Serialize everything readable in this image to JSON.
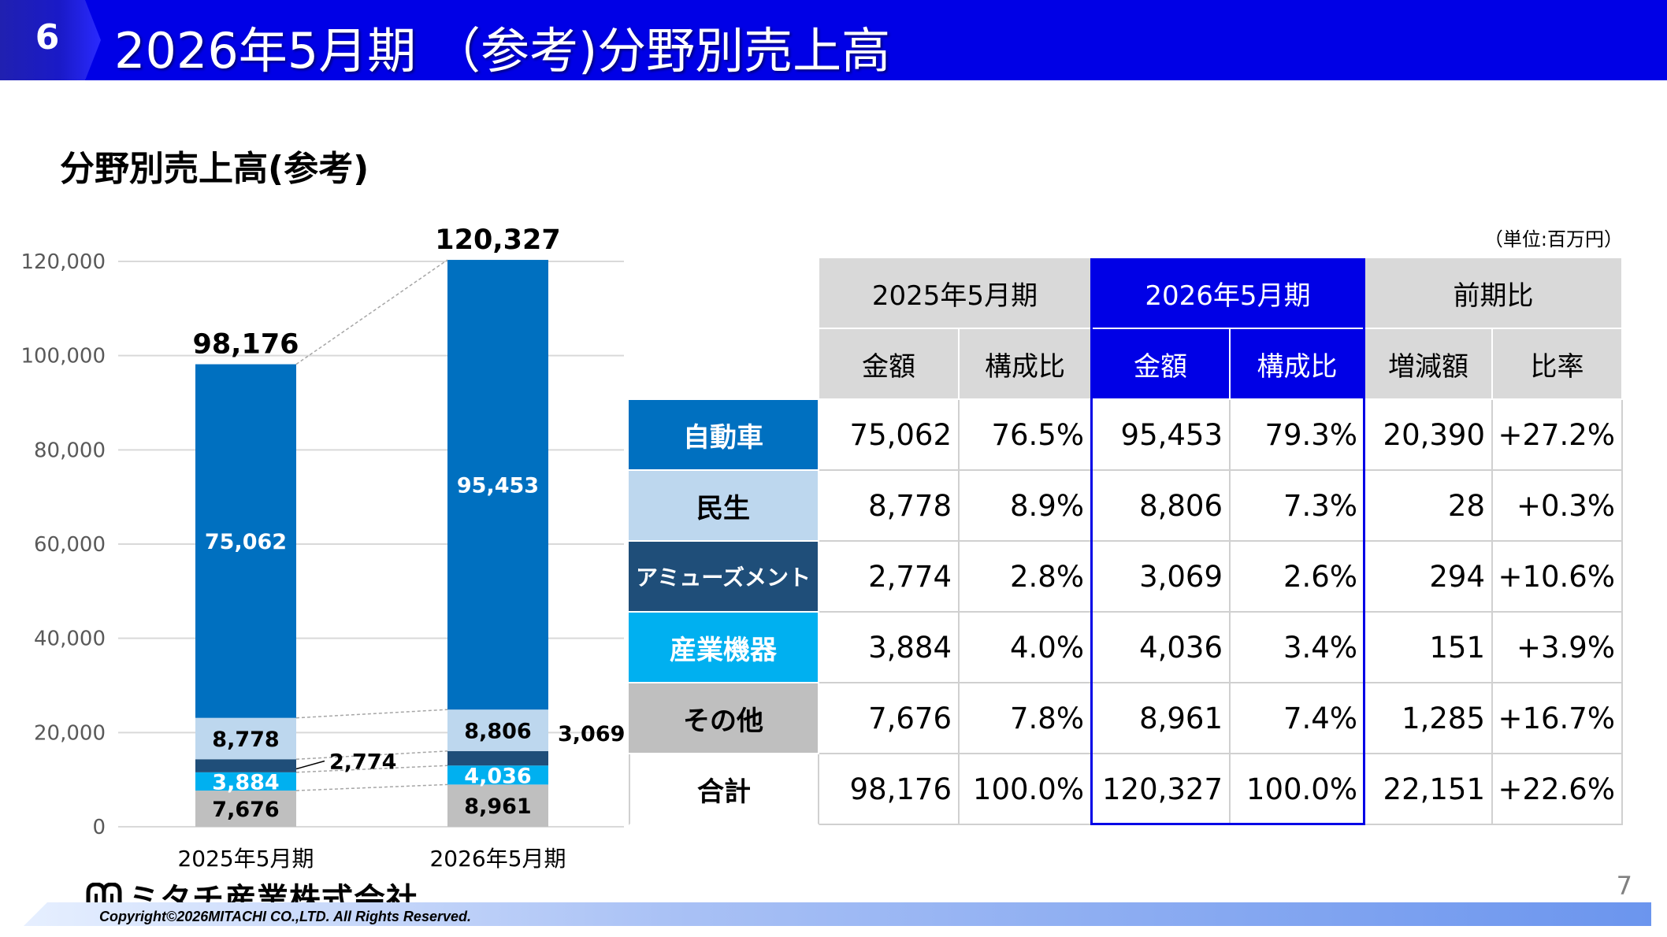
{
  "header": {
    "section_number": "6",
    "title": "2026年5月期 （参考)分野別売上高"
  },
  "subtitle": "分野別売上高(参考)",
  "unit_note": "（単位:百万円）",
  "colors": {
    "header_bg": "#0000e6",
    "automotive": "#0070c0",
    "consumer": "#bdd7ee",
    "amusement": "#1f4e79",
    "industrial": "#00b0f0",
    "other": "#bfbfbf"
  },
  "chart_data": {
    "type": "bar",
    "stacked": true,
    "categories": [
      "2025年5月期",
      "2026年5月期"
    ],
    "series": [
      {
        "name": "その他",
        "values": [
          7676,
          8961
        ],
        "labels": [
          "7,676",
          "8,961"
        ]
      },
      {
        "name": "産業機器",
        "values": [
          3884,
          4036
        ],
        "labels": [
          "3,884",
          "4,036"
        ]
      },
      {
        "name": "アミューズメント",
        "values": [
          2774,
          3069
        ],
        "labels": [
          "2,774",
          "3,069"
        ]
      },
      {
        "name": "民生",
        "values": [
          8778,
          8806
        ],
        "labels": [
          "8,778",
          "8,806"
        ]
      },
      {
        "name": "自動車",
        "values": [
          75062,
          95453
        ],
        "labels": [
          "75,062",
          "95,453"
        ]
      }
    ],
    "totals": [
      98176,
      120327
    ],
    "total_labels": [
      "98,176",
      "120,327"
    ],
    "ylim": [
      0,
      120000
    ],
    "yticks": [
      0,
      20000,
      40000,
      60000,
      80000,
      100000,
      120000
    ],
    "ytick_labels": [
      "0",
      "20,000",
      "40,000",
      "60,000",
      "80,000",
      "100,000",
      "120,000"
    ],
    "grid": true,
    "legend": "none"
  },
  "table": {
    "groups": [
      "2025年5月期",
      "2026年5月期",
      "前期比"
    ],
    "subheaders": [
      "金額",
      "構成比",
      "金額",
      "構成比",
      "増減額",
      "比率"
    ],
    "rows": [
      {
        "category": "自動車",
        "cells": [
          "75,062",
          "76.5%",
          "95,453",
          "79.3%",
          "20,390",
          "+27.2%"
        ]
      },
      {
        "category": "民生",
        "cells": [
          "8,778",
          "8.9%",
          "8,806",
          "7.3%",
          "28",
          "+0.3%"
        ]
      },
      {
        "category": "アミューズメント",
        "cells": [
          "2,774",
          "2.8%",
          "3,069",
          "2.6%",
          "294",
          "+10.6%"
        ]
      },
      {
        "category": "産業機器",
        "cells": [
          "3,884",
          "4.0%",
          "4,036",
          "3.4%",
          "151",
          "+3.9%"
        ]
      },
      {
        "category": "その他",
        "cells": [
          "7,676",
          "7.8%",
          "8,961",
          "7.4%",
          "1,285",
          "+16.7%"
        ]
      },
      {
        "category": "合計",
        "cells": [
          "98,176",
          "100.0%",
          "120,327",
          "100.0%",
          "22,151",
          "+22.6%"
        ]
      }
    ]
  },
  "footer": {
    "company": "ミタチ産業株式会社",
    "copyright": "Copyright©2026MITACHI CO.,LTD. All Rights Reserved.",
    "page_number": "7"
  }
}
